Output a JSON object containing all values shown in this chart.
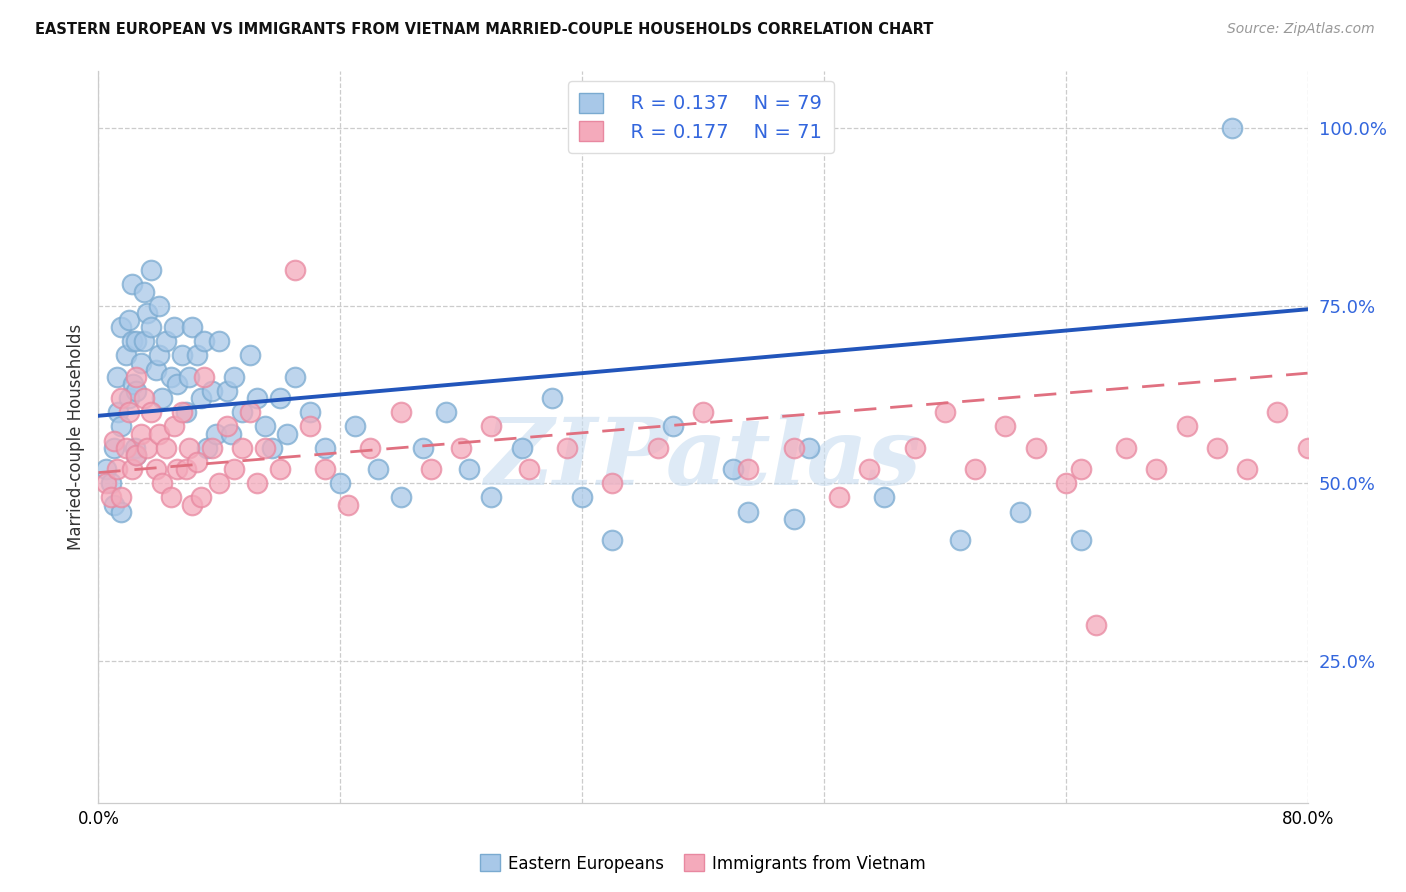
{
  "title": "EASTERN EUROPEAN VS IMMIGRANTS FROM VIETNAM MARRIED-COUPLE HOUSEHOLDS CORRELATION CHART",
  "source": "Source: ZipAtlas.com",
  "ylabel": "Married-couple Households",
  "ytick_labels": [
    "25.0%",
    "50.0%",
    "75.0%",
    "100.0%"
  ],
  "ytick_values": [
    0.25,
    0.5,
    0.75,
    1.0
  ],
  "xlim": [
    0.0,
    0.8
  ],
  "ylim": [
    0.05,
    1.08
  ],
  "legend_r1": "R = 0.137",
  "legend_n1": "N = 79",
  "legend_r2": "R = 0.177",
  "legend_n2": "N = 71",
  "blue_color": "#A8C8E8",
  "pink_color": "#F4AABB",
  "blue_edge": "#7AAAD0",
  "pink_edge": "#E888A0",
  "line_blue_color": "#2255BB",
  "line_pink_color": "#E07080",
  "text_blue": "#3366DD",
  "watermark_color": "#C8DDF0",
  "watermark_text": "ZIPatlas",
  "blue_line_y0": 0.595,
  "blue_line_y1": 0.745,
  "pink_line_y0": 0.515,
  "pink_line_y1": 0.655,
  "blue_x": [
    0.005,
    0.008,
    0.01,
    0.01,
    0.012,
    0.013,
    0.015,
    0.015,
    0.015,
    0.018,
    0.02,
    0.02,
    0.022,
    0.022,
    0.023,
    0.024,
    0.025,
    0.025,
    0.025,
    0.028,
    0.03,
    0.03,
    0.032,
    0.035,
    0.035,
    0.038,
    0.04,
    0.04,
    0.042,
    0.045,
    0.048,
    0.05,
    0.052,
    0.055,
    0.058,
    0.06,
    0.062,
    0.065,
    0.068,
    0.07,
    0.072,
    0.075,
    0.078,
    0.08,
    0.085,
    0.088,
    0.09,
    0.095,
    0.1,
    0.105,
    0.11,
    0.115,
    0.12,
    0.125,
    0.13,
    0.14,
    0.15,
    0.16,
    0.17,
    0.185,
    0.2,
    0.215,
    0.23,
    0.245,
    0.26,
    0.28,
    0.3,
    0.32,
    0.34,
    0.38,
    0.42,
    0.43,
    0.46,
    0.47,
    0.52,
    0.57,
    0.61,
    0.65,
    0.75
  ],
  "blue_y": [
    0.52,
    0.5,
    0.55,
    0.47,
    0.65,
    0.6,
    0.72,
    0.58,
    0.46,
    0.68,
    0.73,
    0.62,
    0.78,
    0.7,
    0.64,
    0.55,
    0.7,
    0.63,
    0.54,
    0.67,
    0.77,
    0.7,
    0.74,
    0.8,
    0.72,
    0.66,
    0.75,
    0.68,
    0.62,
    0.7,
    0.65,
    0.72,
    0.64,
    0.68,
    0.6,
    0.65,
    0.72,
    0.68,
    0.62,
    0.7,
    0.55,
    0.63,
    0.57,
    0.7,
    0.63,
    0.57,
    0.65,
    0.6,
    0.68,
    0.62,
    0.58,
    0.55,
    0.62,
    0.57,
    0.65,
    0.6,
    0.55,
    0.5,
    0.58,
    0.52,
    0.48,
    0.55,
    0.6,
    0.52,
    0.48,
    0.55,
    0.62,
    0.48,
    0.42,
    0.58,
    0.52,
    0.46,
    0.45,
    0.55,
    0.48,
    0.42,
    0.46,
    0.42,
    1.0
  ],
  "pink_x": [
    0.005,
    0.008,
    0.01,
    0.012,
    0.015,
    0.015,
    0.018,
    0.02,
    0.022,
    0.025,
    0.025,
    0.028,
    0.03,
    0.032,
    0.035,
    0.038,
    0.04,
    0.042,
    0.045,
    0.048,
    0.05,
    0.052,
    0.055,
    0.058,
    0.06,
    0.062,
    0.065,
    0.068,
    0.07,
    0.075,
    0.08,
    0.085,
    0.09,
    0.095,
    0.1,
    0.105,
    0.11,
    0.12,
    0.13,
    0.14,
    0.15,
    0.165,
    0.18,
    0.2,
    0.22,
    0.24,
    0.26,
    0.285,
    0.31,
    0.34,
    0.37,
    0.4,
    0.43,
    0.46,
    0.49,
    0.51,
    0.54,
    0.56,
    0.58,
    0.6,
    0.62,
    0.64,
    0.65,
    0.66,
    0.68,
    0.7,
    0.72,
    0.74,
    0.76,
    0.78,
    0.8
  ],
  "pink_y": [
    0.5,
    0.48,
    0.56,
    0.52,
    0.62,
    0.48,
    0.55,
    0.6,
    0.52,
    0.65,
    0.54,
    0.57,
    0.62,
    0.55,
    0.6,
    0.52,
    0.57,
    0.5,
    0.55,
    0.48,
    0.58,
    0.52,
    0.6,
    0.52,
    0.55,
    0.47,
    0.53,
    0.48,
    0.65,
    0.55,
    0.5,
    0.58,
    0.52,
    0.55,
    0.6,
    0.5,
    0.55,
    0.52,
    0.8,
    0.58,
    0.52,
    0.47,
    0.55,
    0.6,
    0.52,
    0.55,
    0.58,
    0.52,
    0.55,
    0.5,
    0.55,
    0.6,
    0.52,
    0.55,
    0.48,
    0.52,
    0.55,
    0.6,
    0.52,
    0.58,
    0.55,
    0.5,
    0.52,
    0.3,
    0.55,
    0.52,
    0.58,
    0.55,
    0.52,
    0.6,
    0.55
  ]
}
